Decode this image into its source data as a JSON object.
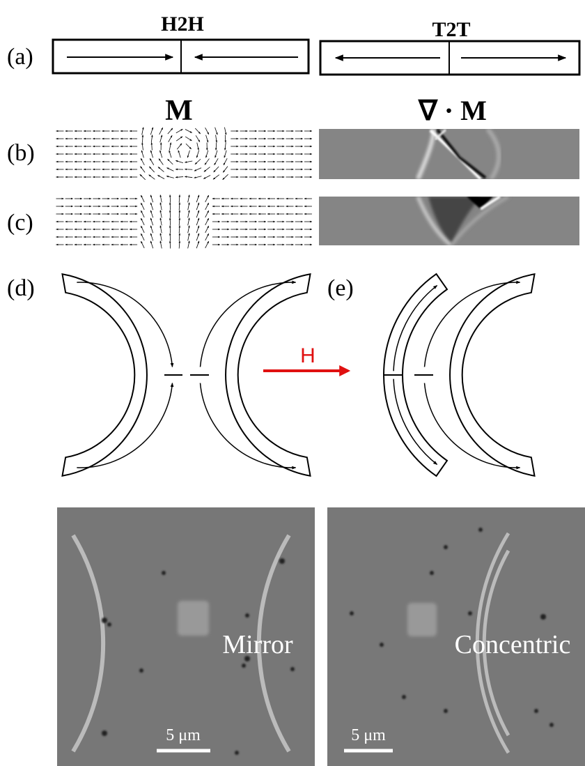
{
  "panel_a": {
    "label": "(a)",
    "left_title": "H2H",
    "right_title": "T2T"
  },
  "columns": {
    "left": "M",
    "right": "∇ · M"
  },
  "panel_b": {
    "label": "(b)"
  },
  "panel_c": {
    "label": "(c)"
  },
  "panel_d": {
    "label": "(d)"
  },
  "panel_e": {
    "label": "(e)"
  },
  "field_label": "H",
  "images": [
    {
      "caption": "Mirror",
      "scale_bar": "5 μm"
    },
    {
      "caption": "Concentric",
      "scale_bar": "5 μm"
    }
  ]
}
